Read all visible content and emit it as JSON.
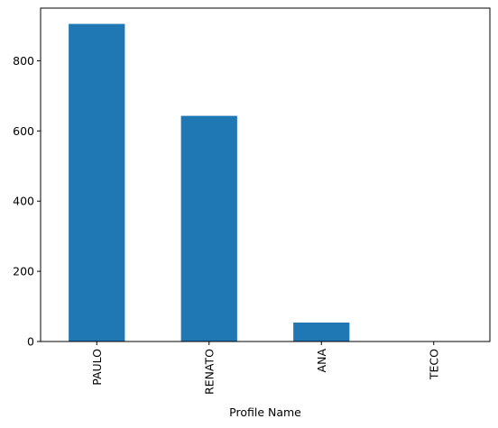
{
  "chart_data": {
    "type": "bar",
    "categories": [
      "PAULO",
      "RENATO",
      "ANA",
      "TECO"
    ],
    "values": [
      905,
      643,
      54,
      0
    ],
    "title": "",
    "xlabel": "Profile Name",
    "ylabel": "",
    "ylim": [
      0,
      950
    ],
    "yticks": [
      0,
      200,
      400,
      600,
      800
    ],
    "grid": false,
    "legend": "none",
    "bar_color": "#1f77b4",
    "x_tick_rotation": 90
  }
}
